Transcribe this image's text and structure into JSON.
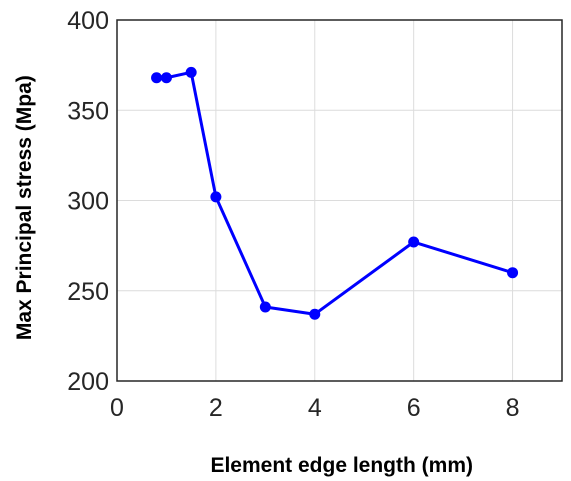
{
  "chart_data": {
    "type": "line",
    "xlabel": "Element edge length (mm)",
    "ylabel": "Max Principal stress (Mpa)",
    "xlim": [
      0,
      9
    ],
    "ylim": [
      200,
      400
    ],
    "xticks": [
      0,
      2,
      4,
      6,
      8
    ],
    "yticks": [
      200,
      250,
      300,
      350,
      400
    ],
    "grid": true,
    "series": [
      {
        "color": "#0000ff",
        "x": [
          0.8,
          1.0,
          1.5,
          2.0,
          3.0,
          4.0,
          6.0,
          8.0
        ],
        "y": [
          368,
          368,
          371,
          302,
          241,
          237,
          277,
          260
        ]
      }
    ]
  }
}
